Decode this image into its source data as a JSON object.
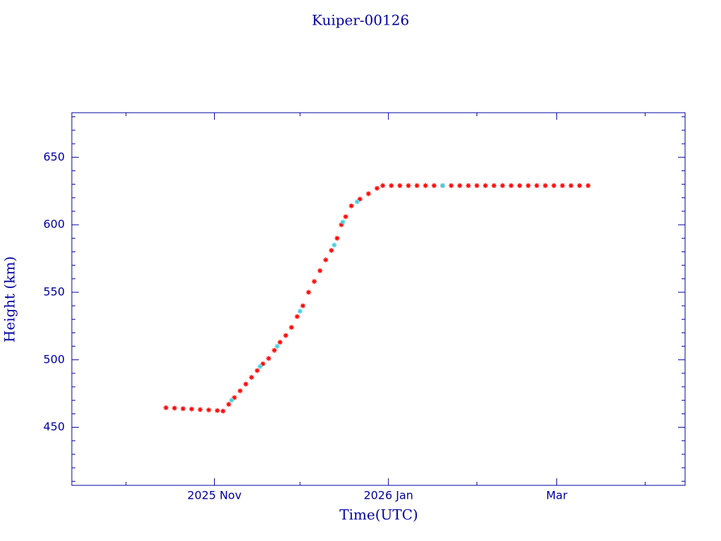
{
  "chart_data": {
    "type": "scatter",
    "title": "Kuiper-00126",
    "x_label": "Time(UTC)",
    "y_label": "Height (km)",
    "xlim": [
      -50,
      165
    ],
    "xticks": [
      {
        "value": 0,
        "label": "2025 Nov"
      },
      {
        "value": 61,
        "label": "2026 Jan"
      },
      {
        "value": 120,
        "label": "Mar"
      }
    ],
    "xminorticks": [
      -31,
      30,
      92,
      151
    ],
    "ylim": [
      407,
      683
    ],
    "yticks": [
      450,
      500,
      550,
      600,
      650
    ],
    "yminorticks": [
      410,
      420,
      430,
      440,
      460,
      470,
      480,
      490,
      510,
      520,
      530,
      540,
      560,
      570,
      580,
      590,
      610,
      620,
      630,
      640,
      660,
      670,
      680
    ],
    "grid": false,
    "series": [
      {
        "color": "#ff0000",
        "x": [
          -17,
          -14,
          -11,
          -8,
          -5,
          -2,
          1,
          3,
          5,
          7,
          9,
          11,
          13,
          15,
          17,
          19,
          21,
          23,
          25,
          27,
          29,
          31,
          33,
          35,
          37,
          39,
          41,
          43,
          44.5,
          46,
          48,
          51,
          54,
          57,
          59,
          62,
          65,
          68,
          71,
          74,
          77,
          80,
          83,
          86,
          89,
          92,
          95,
          98,
          101,
          104,
          107,
          110,
          113,
          116,
          119,
          122,
          125,
          128,
          131
        ],
        "values": [
          464.5,
          464.2,
          463.8,
          463.5,
          463.1,
          462.8,
          462.4,
          462,
          467,
          472,
          477,
          482,
          487,
          492,
          497,
          501,
          507,
          513,
          518,
          524,
          532,
          540,
          550,
          558,
          566,
          574,
          581,
          590,
          600,
          606,
          614,
          619,
          623,
          627,
          629,
          629,
          629,
          629,
          629,
          629,
          629,
          629,
          629,
          629,
          629,
          629,
          629,
          629,
          629,
          629,
          629,
          629,
          629,
          629,
          629,
          629,
          629,
          629,
          629
        ]
      },
      {
        "color": "#40d0e0",
        "x": [
          6,
          16,
          22,
          30,
          42,
          45,
          50,
          80
        ],
        "values": [
          470,
          495,
          510,
          536,
          585,
          602,
          617,
          629
        ]
      }
    ]
  }
}
